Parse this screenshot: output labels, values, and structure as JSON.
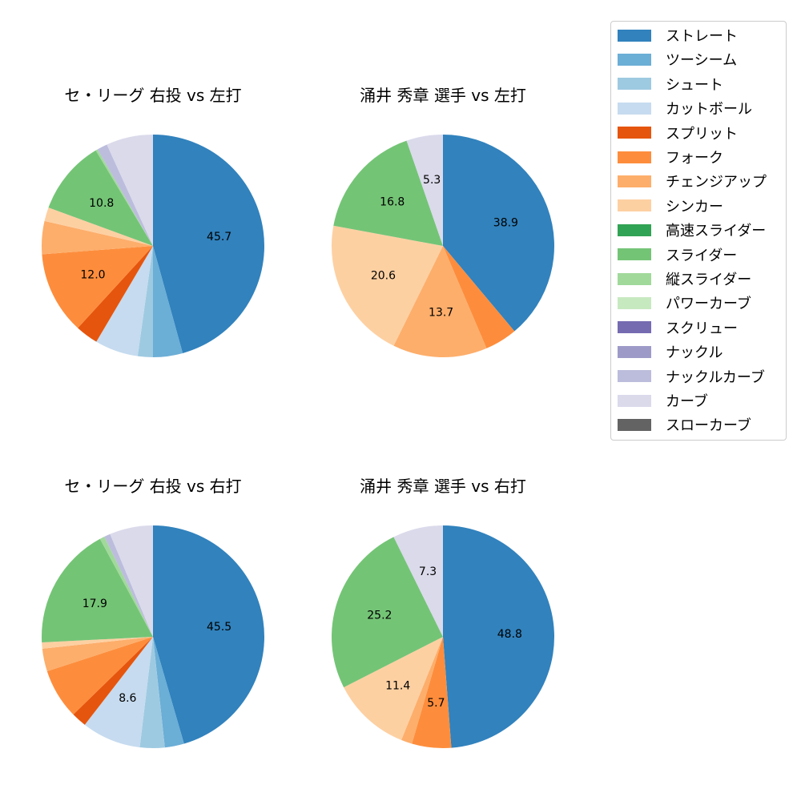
{
  "legend": {
    "items": [
      {
        "label": "ストレート",
        "color": "#3182bd"
      },
      {
        "label": "ツーシーム",
        "color": "#6baed6"
      },
      {
        "label": "シュート",
        "color": "#9ecae1"
      },
      {
        "label": "カットボール",
        "color": "#c6dbef"
      },
      {
        "label": "スプリット",
        "color": "#e6550d"
      },
      {
        "label": "フォーク",
        "color": "#fd8d3c"
      },
      {
        "label": "チェンジアップ",
        "color": "#fdae6b"
      },
      {
        "label": "シンカー",
        "color": "#fdd0a2"
      },
      {
        "label": "高速スライダー",
        "color": "#31a354"
      },
      {
        "label": "スライダー",
        "color": "#74c476"
      },
      {
        "label": "縦スライダー",
        "color": "#a1d99b"
      },
      {
        "label": "パワーカーブ",
        "color": "#c7e9c0"
      },
      {
        "label": "スクリュー",
        "color": "#756bb1"
      },
      {
        "label": "ナックル",
        "color": "#9e9ac8"
      },
      {
        "label": "ナックルカーブ",
        "color": "#bcbddc"
      },
      {
        "label": "カーブ",
        "color": "#dadaeb"
      },
      {
        "label": "スローカーブ",
        "color": "#636363"
      }
    ]
  },
  "charts": [
    {
      "title": "セ・リーグ 右投 vs 左打"
    },
    {
      "title": "涌井 秀章 選手 vs 左打"
    },
    {
      "title": "セ・リーグ 右投 vs 右打"
    },
    {
      "title": "涌井 秀章 選手 vs 右打"
    }
  ],
  "chart_data": [
    {
      "type": "pie",
      "title": "セ・リーグ 右投 vs 左打",
      "categories": [
        "ストレート",
        "ツーシーム",
        "シュート",
        "カットボール",
        "スプリット",
        "フォーク",
        "チェンジアップ",
        "シンカー",
        "スライダー",
        "縦スライダー",
        "ナックルカーブ",
        "カーブ"
      ],
      "values": [
        45.7,
        4.3,
        2.2,
        6.3,
        3.3,
        12.0,
        4.8,
        2.0,
        10.8,
        0.3,
        1.5,
        6.8
      ],
      "labels_shown": [
        "45.7",
        "12.0",
        "10.8"
      ],
      "start_angle": 90,
      "direction": "clockwise"
    },
    {
      "type": "pie",
      "title": "涌井 秀章 選手 vs 左打",
      "categories": [
        "ストレート",
        "フォーク",
        "チェンジアップ",
        "シンカー",
        "スライダー",
        "カーブ"
      ],
      "values": [
        38.9,
        4.7,
        13.7,
        20.6,
        16.8,
        5.3
      ],
      "labels_shown": [
        "38.9",
        "13.7",
        "20.6",
        "16.8",
        "5.3"
      ],
      "start_angle": 90,
      "direction": "clockwise"
    },
    {
      "type": "pie",
      "title": "セ・リーグ 右投 vs 右打",
      "categories": [
        "ストレート",
        "ツーシーム",
        "シュート",
        "カットボール",
        "スプリット",
        "フォーク",
        "チェンジアップ",
        "シンカー",
        "スライダー",
        "縦スライダー",
        "ナックルカーブ",
        "カーブ"
      ],
      "values": [
        45.5,
        2.8,
        3.6,
        8.6,
        2.2,
        7.3,
        3.3,
        0.9,
        17.9,
        0.7,
        0.9,
        6.3
      ],
      "labels_shown": [
        "45.5",
        "8.6",
        "17.9"
      ],
      "start_angle": 90,
      "direction": "clockwise"
    },
    {
      "type": "pie",
      "title": "涌井 秀章 選手 vs 右打",
      "categories": [
        "ストレート",
        "フォーク",
        "チェンジアップ",
        "シンカー",
        "スライダー",
        "カーブ"
      ],
      "values": [
        48.8,
        5.7,
        1.6,
        11.4,
        25.2,
        7.3
      ],
      "labels_shown": [
        "48.8",
        "5.7",
        "11.4",
        "25.2",
        "7.3"
      ],
      "start_angle": 90,
      "direction": "clockwise"
    }
  ]
}
